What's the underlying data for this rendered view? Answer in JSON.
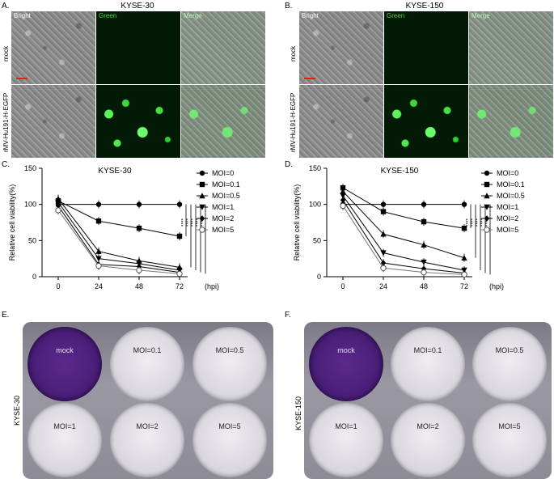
{
  "panels": {
    "A": {
      "letter": "A.",
      "title": "KYSE-30"
    },
    "B": {
      "letter": "B.",
      "title": "KYSE-150"
    },
    "C": {
      "letter": "C."
    },
    "D": {
      "letter": "D."
    },
    "E": {
      "letter": "E.",
      "side_label": "KYSE-30"
    },
    "F": {
      "letter": "F.",
      "side_label": "KYSE-150"
    }
  },
  "micro": {
    "columns": [
      "Bright",
      "Green",
      "Merge"
    ],
    "rows": [
      "mock",
      "rMV-Hu191-H-EGFP"
    ]
  },
  "plate_wells": [
    "mock",
    "MOI=0.1",
    "MOI=0.5",
    "MOI=1",
    "MOI=2",
    "MOI=5"
  ],
  "chart_data": [
    {
      "type": "line",
      "title": "KYSE-30",
      "ylabel": "Relative cell viability(%)",
      "xlabel": "(hpi)",
      "x": [
        0,
        24,
        48,
        72
      ],
      "ylim": [
        0,
        150
      ],
      "yticks": [
        0,
        50,
        100,
        150
      ],
      "series": [
        {
          "name": "MOI=0",
          "marker": "circle",
          "values": [
            100,
            100,
            100,
            100
          ]
        },
        {
          "name": "MOI=0.1",
          "marker": "square",
          "values": [
            105,
            77,
            67,
            56
          ]
        },
        {
          "name": "MOI=0.5",
          "marker": "triangle-up",
          "values": [
            108,
            35,
            22,
            13
          ]
        },
        {
          "name": "MOI=1",
          "marker": "triangle-down",
          "values": [
            103,
            25,
            18,
            9
          ]
        },
        {
          "name": "MOI=2",
          "marker": "diamond",
          "values": [
            98,
            17,
            14,
            6
          ]
        },
        {
          "name": "MOI=5",
          "marker": "circle-open",
          "values": [
            92,
            15,
            9,
            4
          ]
        }
      ],
      "significance": [
        "****",
        "****",
        "****",
        "****",
        "****"
      ],
      "legend_position": "right"
    },
    {
      "type": "line",
      "title": "KYSE-150",
      "ylabel": "Relative cell viability(%)",
      "xlabel": "(hpi)",
      "x": [
        0,
        24,
        48,
        72
      ],
      "ylim": [
        0,
        150
      ],
      "yticks": [
        0,
        50,
        100,
        150
      ],
      "series": [
        {
          "name": "MOI=0",
          "marker": "circle",
          "values": [
            100,
            100,
            100,
            100
          ]
        },
        {
          "name": "MOI=0.1",
          "marker": "square",
          "values": [
            123,
            90,
            76,
            67
          ]
        },
        {
          "name": "MOI=0.5",
          "marker": "triangle-up",
          "values": [
            118,
            59,
            44,
            26
          ]
        },
        {
          "name": "MOI=1",
          "marker": "triangle-down",
          "values": [
            112,
            33,
            20,
            9
          ]
        },
        {
          "name": "MOI=2",
          "marker": "diamond",
          "values": [
            106,
            19,
            11,
            5
          ]
        },
        {
          "name": "MOI=5",
          "marker": "circle-open",
          "values": [
            98,
            12,
            6,
            3
          ]
        }
      ],
      "significance": [
        "****",
        "****",
        "****",
        "****",
        "****"
      ],
      "legend_position": "right"
    }
  ]
}
